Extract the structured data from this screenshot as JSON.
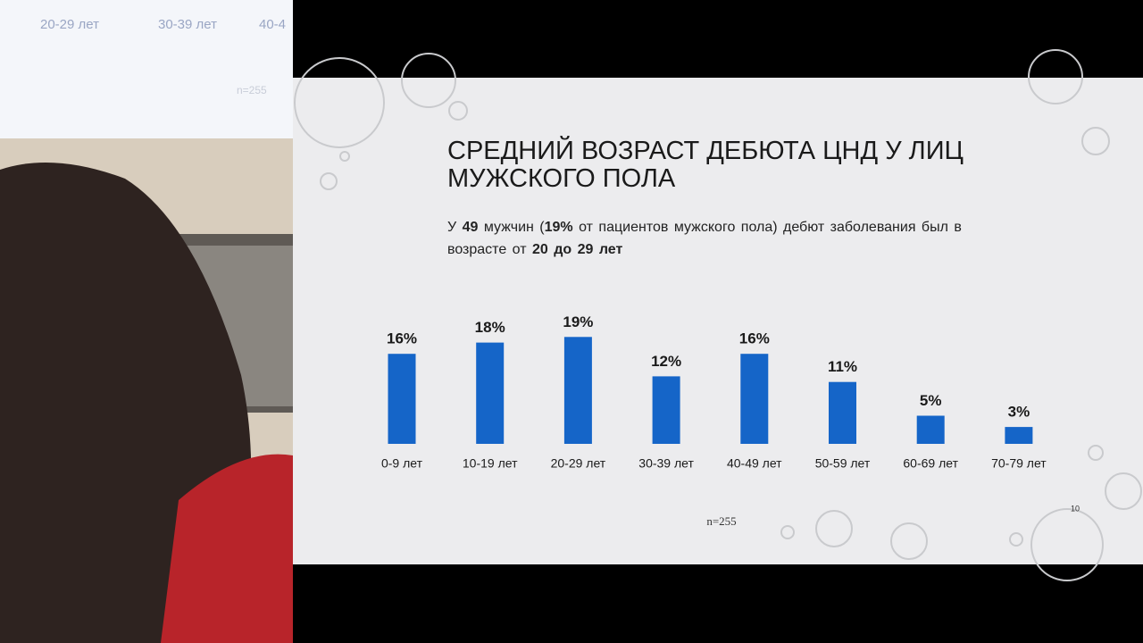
{
  "background_slide": {
    "labels": [
      "20-29 лет",
      "30-39 лет",
      "40-4"
    ],
    "note": "n=255"
  },
  "chart_data": {
    "type": "bar",
    "title": "СРЕДНИЙ ВОЗРАСТ ДЕБЮТА ЦНД У ЛИЦ МУЖСКОГО ПОЛА",
    "subtitle": [
      {
        "text": "У ",
        "bold": false
      },
      {
        "text": "49",
        "bold": true
      },
      {
        "text": " мужчин (",
        "bold": false
      },
      {
        "text": "19%",
        "bold": true
      },
      {
        "text": " от пациентов мужского пола) дебют заболевания был в возрасте от ",
        "bold": false
      },
      {
        "text": "20 до 29 лет",
        "bold": true
      }
    ],
    "categories": [
      "0-9 лет",
      "10-19 лет",
      "20-29 лет",
      "30-39 лет",
      "40-49 лет",
      "50-59 лет",
      "60-69 лет",
      "70-79 лет"
    ],
    "values": [
      16,
      18,
      19,
      12,
      16,
      11,
      5,
      3
    ],
    "value_labels": [
      "16%",
      "18%",
      "19%",
      "12%",
      "16%",
      "11%",
      "5%",
      "3%"
    ],
    "color": "#1565c8",
    "note": "n=255",
    "page_number": "10"
  }
}
